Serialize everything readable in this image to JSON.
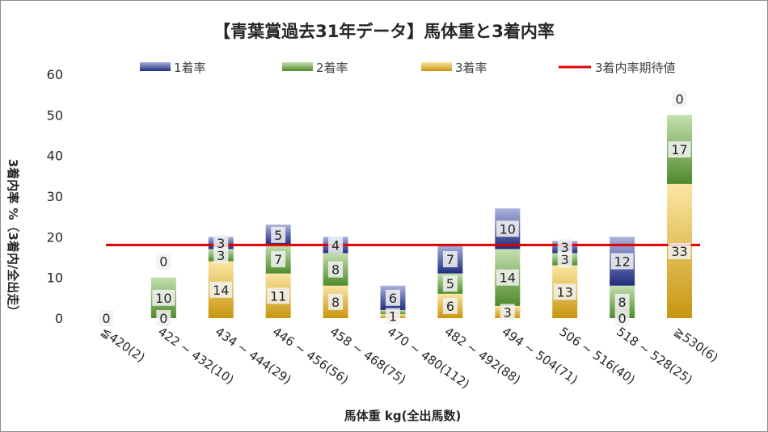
{
  "chart_data": {
    "type": "bar",
    "stacked": true,
    "title": "【青葉賞過去31年データ】馬体重と3着内率",
    "xlabel": "馬体重 kg(全出馬数)",
    "ylabel": "3着内率 %（3着内/全出走）",
    "ylim": [
      0,
      60
    ],
    "yticks": [
      "0",
      "10",
      "20",
      "30",
      "40",
      "50",
      "60"
    ],
    "legend_position": "top",
    "categories": [
      "≦420(2)",
      "422 ~ 432(10)",
      "434 ~ 444(29)",
      "446 ~ 456(56)",
      "458 ~ 468(75)",
      "470 ~ 480(112)",
      "482 ~ 492(88)",
      "494 ~ 504(71)",
      "506 ~ 516(40)",
      "518 ~ 528(25)",
      "≧530(6)"
    ],
    "series": [
      {
        "name": "3着率",
        "values": [
          0,
          0,
          14,
          11,
          8,
          1,
          6,
          3,
          13,
          0,
          33
        ],
        "labels": [
          "0",
          "0",
          "14",
          "11",
          "8",
          "1",
          "6",
          "3",
          "13",
          "0",
          "33"
        ],
        "color": "#d9a92b"
      },
      {
        "name": "2着率",
        "values": [
          0,
          10,
          3,
          7,
          8,
          1,
          5,
          14,
          3,
          8,
          17
        ],
        "labels": [
          "",
          "10",
          "3",
          "7",
          "8",
          "",
          "5",
          "14",
          "3",
          "8",
          "17"
        ],
        "color": "#6fa84a"
      },
      {
        "name": "1着率",
        "values": [
          0,
          0,
          3,
          5,
          4,
          6,
          7,
          10,
          3,
          12,
          0
        ],
        "labels": [
          "",
          "0",
          "3",
          "5",
          "4",
          "6",
          "7",
          "10",
          "3",
          "12",
          "0"
        ],
        "color": "#3f4d9a"
      }
    ],
    "reference_line": {
      "name": "3着内率期待値",
      "value": 18,
      "color": "#e00000"
    }
  }
}
